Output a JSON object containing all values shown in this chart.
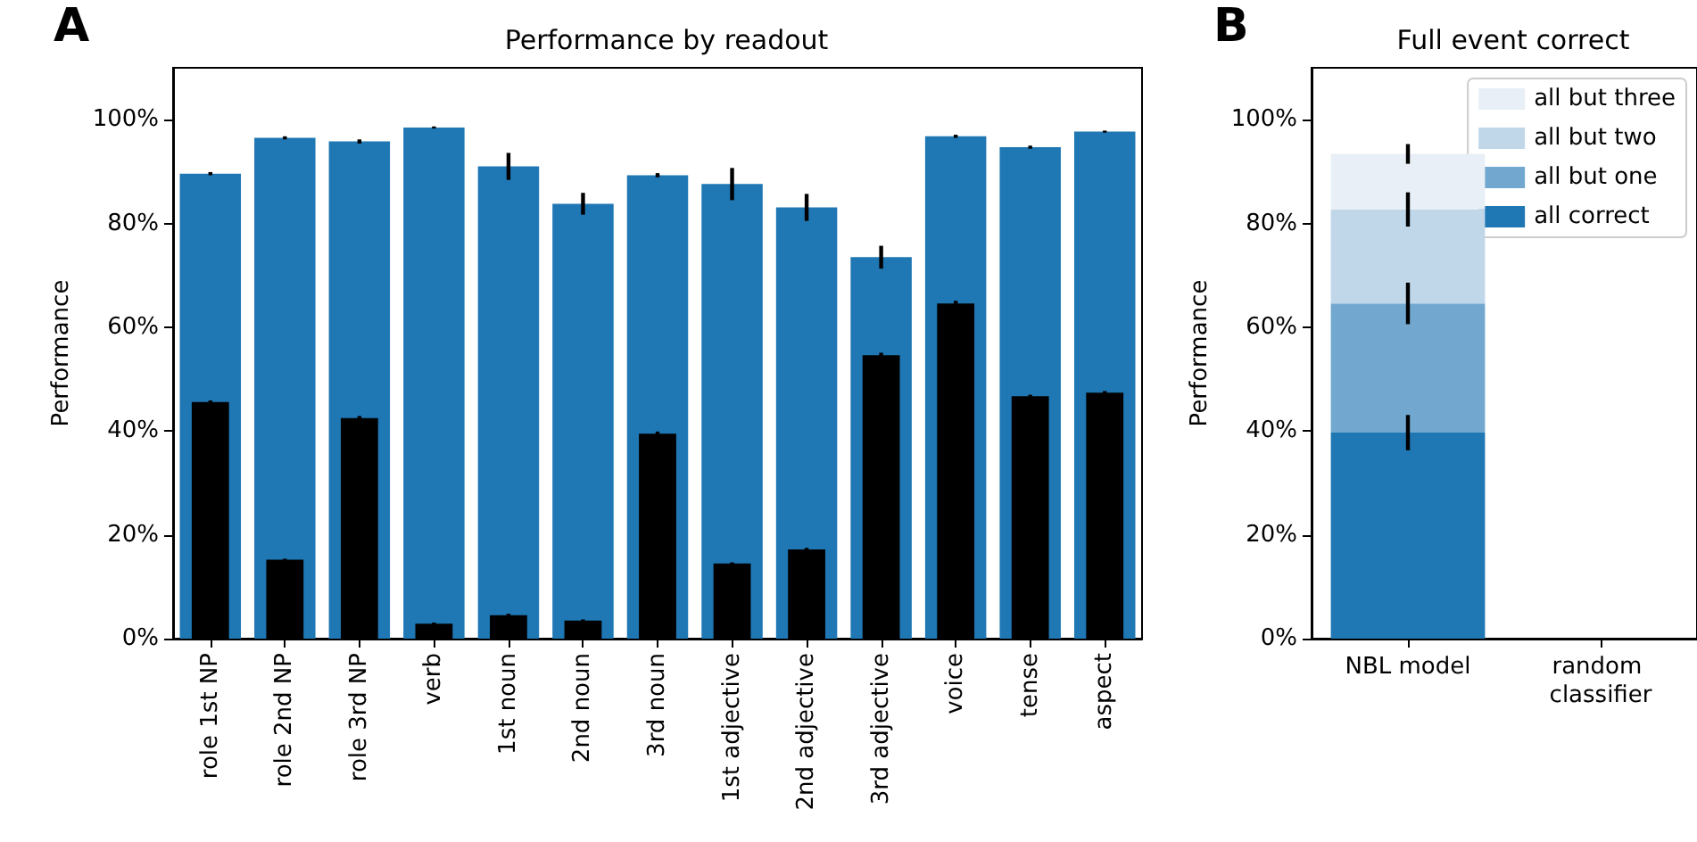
{
  "chart_data": [
    {
      "type": "bar",
      "title": "Performance by readout",
      "ylabel": "Performance",
      "annotations": [
        "A"
      ],
      "categories": [
        "role 1st NP",
        "role 2nd NP",
        "role 3rd NP",
        "verb",
        "1st noun",
        "2nd noun",
        "3rd noun",
        "1st adjective",
        "2nd adjective",
        "3rd adjective",
        "voice",
        "tense",
        "aspect"
      ],
      "series": [
        {
          "color": "#1f77b4",
          "values": [
            89.6,
            96.5,
            95.8,
            98.5,
            91,
            83.8,
            89.3,
            87.6,
            83.1,
            73.5,
            96.8,
            94.7,
            97.7
          ],
          "errors": [
            0.3,
            0.3,
            0.4,
            0.2,
            2.6,
            2.1,
            0.4,
            3.1,
            2.6,
            2.2,
            0.3,
            0.3,
            0.2
          ]
        },
        {
          "color": "#000000",
          "values": [
            45.6,
            15.2,
            42.5,
            2.9,
            4.5,
            3.5,
            39.5,
            14.5,
            17.2,
            54.6,
            64.6,
            46.7,
            47.4
          ],
          "errors": [
            0.3,
            0.2,
            0.4,
            0.2,
            0.3,
            0.2,
            0.4,
            0.2,
            0.3,
            0.5,
            0.5,
            0.3,
            0.3
          ]
        }
      ],
      "ylim": [
        0,
        110
      ],
      "yticks": [
        {
          "value": 0,
          "label": "0%"
        },
        {
          "value": 20,
          "label": "20%"
        },
        {
          "value": 40,
          "label": "40%"
        },
        {
          "value": 60,
          "label": "60%"
        },
        {
          "value": 80,
          "label": "80%"
        },
        {
          "value": 100,
          "label": "100%"
        }
      ],
      "grid": false,
      "legend": false
    },
    {
      "type": "bar",
      "title": "Full event correct",
      "ylabel": "Performance",
      "annotations": [
        "B"
      ],
      "stacked": true,
      "categories": [
        "NBL model",
        "random classifier"
      ],
      "series": [
        {
          "name": "all correct",
          "color": "#1f77b4",
          "values": [
            39.7,
            null
          ],
          "errors": [
            3.4,
            null
          ]
        },
        {
          "name": "all but one",
          "color": "#72a8d0",
          "values": [
            24.9,
            null
          ],
          "errors": [
            4,
            null
          ]
        },
        {
          "name": "all but two",
          "color": "#c0d7ea",
          "values": [
            18.1,
            null
          ],
          "errors": [
            3.3,
            null
          ]
        },
        {
          "name": "all but three",
          "color": "#e8eff6",
          "values": [
            10.7,
            null
          ],
          "errors": [
            1.9,
            null
          ]
        }
      ],
      "ylim": [
        0,
        110
      ],
      "yticks": [
        {
          "value": 0,
          "label": "0%"
        },
        {
          "value": 20,
          "label": "20%"
        },
        {
          "value": 40,
          "label": "40%"
        },
        {
          "value": 60,
          "label": "60%"
        },
        {
          "value": 80,
          "label": "80%"
        },
        {
          "value": 100,
          "label": "100%"
        }
      ],
      "grid": false,
      "legend": "top right"
    }
  ]
}
